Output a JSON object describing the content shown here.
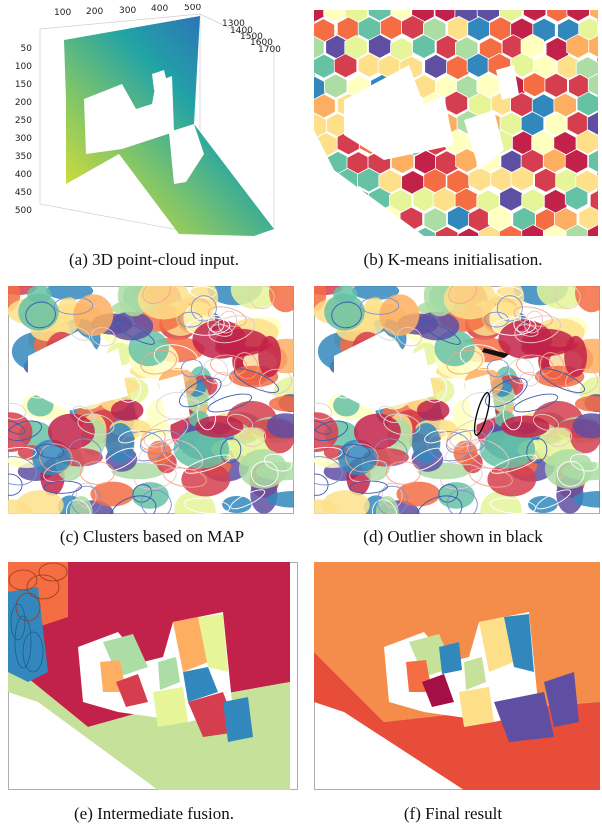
{
  "figure": {
    "panels": [
      {
        "id": "a",
        "caption": "(a) 3D point-cloud input.",
        "axis_ticks": {
          "top": [
            "100",
            "200",
            "300",
            "400",
            "500"
          ],
          "right": [
            "1300",
            "1400",
            "1500",
            "1600",
            "1700"
          ],
          "left": [
            "50",
            "100",
            "150",
            "200",
            "250",
            "300",
            "350",
            "400",
            "450",
            "500"
          ]
        }
      },
      {
        "id": "b",
        "caption": "(b) K-means initialisation."
      },
      {
        "id": "c",
        "caption": "(c) Clusters based on MAP"
      },
      {
        "id": "d",
        "caption": "(d) Outlier shown in black"
      },
      {
        "id": "e",
        "caption": "(e) Intermediate fusion."
      },
      {
        "id": "f",
        "caption": "(f) Final result"
      }
    ],
    "palette": {
      "red": "#d53e4f",
      "crimson": "#c2224a",
      "orange": "#f46d43",
      "light_orange": "#fdae61",
      "yellow": "#fee08b",
      "pale": "#ffffbf",
      "light_green": "#e6f598",
      "green": "#abdda4",
      "teal": "#66c2a5",
      "blue": "#3288bd",
      "indigo": "#5e4fa2"
    }
  }
}
